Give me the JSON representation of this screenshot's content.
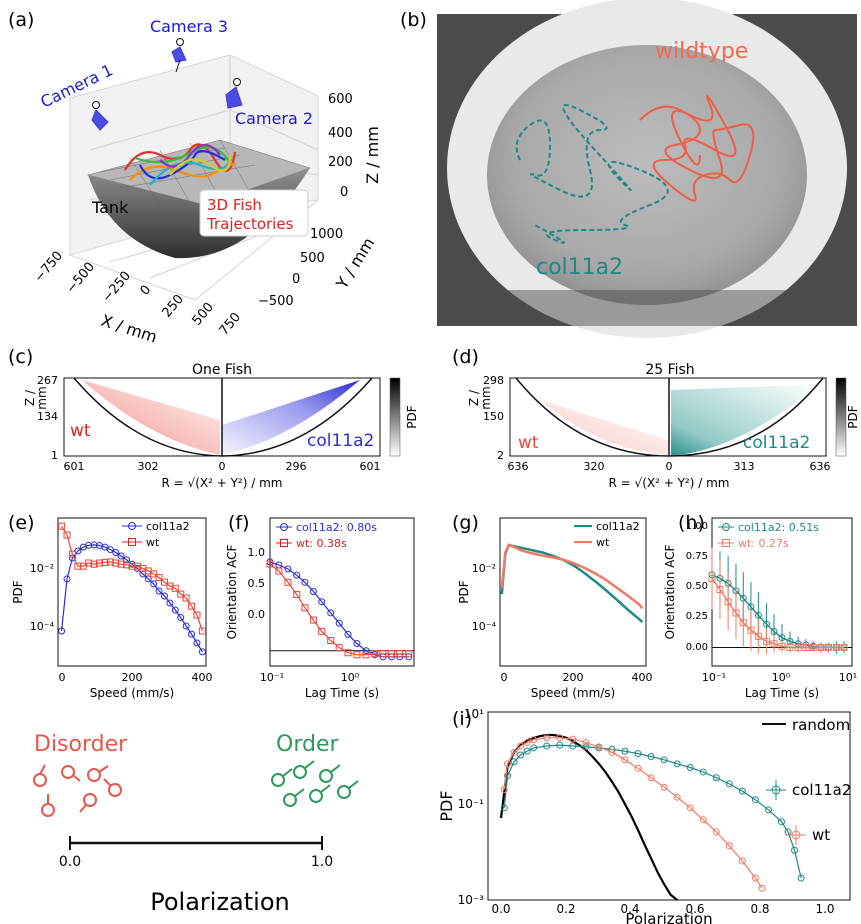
{
  "colors": {
    "wt": "#e8473b",
    "wt_light": "#f07a63",
    "col11a2_blue": "#2b2bd9",
    "col11a2_teal": "#1f8a84",
    "camera": "#1a1acc",
    "order_green": "#2c9a5a",
    "disorder_red": "#e8564c"
  },
  "panel_a": {
    "label": "(a)",
    "cameras": [
      "Camera 1",
      "Camera 2",
      "Camera 3"
    ],
    "tank_label": "Tank",
    "traj_label_1": "3D Fish",
    "traj_label_2": "Trajectories",
    "z_axis": "Z / mm",
    "z_ticks": [
      "600",
      "400",
      "200",
      "0"
    ],
    "y_axis": "Y / mm",
    "y_ticks": [
      "1000",
      "500",
      "0",
      "−500"
    ],
    "x_axis": "X / mm",
    "x_ticks": [
      "−750",
      "−500",
      "−250",
      "0",
      "250",
      "500",
      "750"
    ]
  },
  "panel_b": {
    "label": "(b)",
    "wildtype_label": "wildtype",
    "col11a2_label": "col11a2"
  },
  "panel_c": {
    "label": "(c)",
    "title": "One Fish",
    "ylabel_1": "Z /",
    "ylabel_2": "mm",
    "yticks": [
      "267",
      "134",
      "1"
    ],
    "xticks": [
      "601",
      "302",
      "0",
      "296",
      "601"
    ],
    "left_label": "wt",
    "right_label": "col11a2",
    "xlabel": "R = √(X² + Y²) / mm",
    "colorbar_label": "PDF"
  },
  "panel_d": {
    "label": "(d)",
    "title": "25 Fish",
    "ylabel_1": "Z /",
    "ylabel_2": "mm",
    "yticks": [
      "298",
      "150",
      "2"
    ],
    "xticks": [
      "636",
      "320",
      "0",
      "313",
      "636"
    ],
    "left_label": "wt",
    "right_label": "col11a2",
    "xlabel": "R = √(X² + Y²) / mm",
    "colorbar_label": "PDF"
  },
  "panel_e": {
    "label": "(e)",
    "ylabel": "PDF",
    "xlabel": "Speed (mm/s)",
    "xticks": [
      "0",
      "200",
      "400"
    ],
    "yticks": [
      "10⁻²",
      "10⁻⁴"
    ],
    "legend": [
      "col11a2",
      "wt"
    ]
  },
  "panel_f": {
    "label": "(f)",
    "ylabel": "Orientation ACF",
    "xlabel": "Lag Time (s)",
    "xticks": [
      "10⁻¹",
      "10⁰"
    ],
    "yticks": [
      "1.0",
      "0.5",
      "0.0"
    ],
    "legend": [
      "col11a2: 0.80s",
      "wt: 0.38s"
    ]
  },
  "panel_g": {
    "label": "(g)",
    "ylabel": "PDF",
    "xlabel": "Speed (mm/s)",
    "xticks": [
      "0",
      "200",
      "400"
    ],
    "yticks": [
      "10⁻²",
      "10⁻⁴"
    ],
    "legend": [
      "col11a2",
      "wt"
    ]
  },
  "panel_h": {
    "label": "(h)",
    "ylabel": "Orientation ACF",
    "xlabel": "Lag Time (s)",
    "xticks": [
      "10⁻¹",
      "10⁰",
      "10¹"
    ],
    "yticks": [
      "1.00",
      "0.75",
      "0.50",
      "0.25",
      "0.00"
    ],
    "legend": [
      "col11a2: 0.51s",
      "wt: 0.27s"
    ]
  },
  "panel_i": {
    "label": "(i)",
    "ylabel": "PDF",
    "xlabel": "Polarization",
    "xticks": [
      "0.0",
      "0.2",
      "0.4",
      "0.6",
      "0.8",
      "1.0"
    ],
    "yticks": [
      "10¹",
      "10⁻¹",
      "10⁻³"
    ],
    "legend": [
      "random",
      "col11a2",
      "wt"
    ]
  },
  "schematic": {
    "disorder": "Disorder",
    "order": "Order",
    "axis_label": "Polarization",
    "tick_left": "0.0",
    "tick_right": "1.0"
  },
  "chart_data": [
    {
      "type": "line",
      "panel": "e",
      "xlabel": "Speed (mm/s)",
      "ylabel": "PDF",
      "yscale": "log",
      "xlim": [
        0,
        410
      ],
      "ylim": [
        8e-06,
        0.04
      ],
      "series": [
        {
          "name": "col11a2",
          "x": [
            10,
            25,
            40,
            55,
            70,
            85,
            100,
            115,
            130,
            145,
            160,
            175,
            190,
            205,
            220,
            235,
            250,
            265,
            280,
            295,
            310,
            325,
            340,
            355,
            370,
            385,
            400
          ],
          "y": [
            6e-05,
            0.0012,
            0.004,
            0.006,
            0.0075,
            0.0083,
            0.0085,
            0.0082,
            0.0075,
            0.0065,
            0.0055,
            0.0045,
            0.0036,
            0.0028,
            0.0022,
            0.0016,
            0.0012,
            0.0009,
            0.0006,
            0.00045,
            0.0003,
            0.0002,
            0.00013,
            8e-05,
            5e-05,
            3e-05,
            1.8e-05
          ]
        },
        {
          "name": "wt",
          "x": [
            10,
            25,
            40,
            55,
            70,
            85,
            100,
            115,
            130,
            145,
            160,
            175,
            190,
            205,
            220,
            235,
            250,
            265,
            280,
            295,
            310,
            325,
            340,
            355,
            370,
            385,
            400
          ],
          "y": [
            0.025,
            0.015,
            0.005,
            0.0025,
            0.0025,
            0.003,
            0.0028,
            0.003,
            0.0031,
            0.0032,
            0.003,
            0.0028,
            0.0027,
            0.0025,
            0.0025,
            0.0022,
            0.0019,
            0.0016,
            0.0013,
            0.001,
            0.0008,
            0.0007,
            0.0005,
            0.0004,
            0.00025,
            0.00015,
            6e-05
          ]
        }
      ]
    },
    {
      "type": "line",
      "panel": "f",
      "xlabel": "Lag Time (s)",
      "ylabel": "Orientation ACF",
      "xscale": "log",
      "xlim": [
        0.1,
        7
      ],
      "ylim": [
        -0.15,
        1.3
      ],
      "series": [
        {
          "name": "col11a2: 0.80s",
          "x": [
            0.1,
            0.13,
            0.17,
            0.22,
            0.28,
            0.36,
            0.46,
            0.6,
            0.77,
            1.0,
            1.3,
            1.7,
            2.2,
            2.8,
            3.6,
            4.6,
            6.0
          ],
          "y": [
            0.87,
            0.84,
            0.8,
            0.74,
            0.67,
            0.58,
            0.48,
            0.37,
            0.27,
            0.16,
            0.07,
            0.0,
            -0.04,
            -0.06,
            -0.06,
            -0.06,
            -0.06
          ]
        },
        {
          "name": "wt: 0.38s",
          "x": [
            0.1,
            0.13,
            0.17,
            0.22,
            0.28,
            0.36,
            0.46,
            0.6,
            0.77,
            1.0,
            1.3,
            1.7,
            2.2,
            2.8,
            3.6,
            4.6,
            6.0
          ],
          "y": [
            0.85,
            0.78,
            0.67,
            0.55,
            0.42,
            0.3,
            0.19,
            0.1,
            0.03,
            -0.02,
            -0.04,
            -0.04,
            -0.03,
            -0.03,
            -0.03,
            -0.03,
            -0.03
          ]
        }
      ]
    },
    {
      "type": "line",
      "panel": "g",
      "xlabel": "Speed (mm/s)",
      "ylabel": "PDF",
      "yscale": "log",
      "xlim": [
        0,
        410
      ],
      "ylim": [
        8e-06,
        0.04
      ],
      "series": [
        {
          "name": "col11a2",
          "x": [
            5,
            15,
            25,
            40,
            60,
            80,
            100,
            120,
            150,
            180,
            210,
            240,
            270,
            300,
            330,
            360,
            390,
            400
          ],
          "y": [
            0.0005,
            0.005,
            0.0085,
            0.0078,
            0.0072,
            0.0066,
            0.006,
            0.0055,
            0.0045,
            0.0035,
            0.0025,
            0.0016,
            0.001,
            0.0006,
            0.00035,
            0.0002,
            0.00012,
            0.0001
          ]
        },
        {
          "name": "wt",
          "x": [
            5,
            15,
            25,
            40,
            60,
            80,
            100,
            120,
            150,
            180,
            210,
            240,
            270,
            300,
            330,
            360,
            390,
            400
          ],
          "y": [
            0.0007,
            0.0055,
            0.0085,
            0.0075,
            0.0062,
            0.0055,
            0.005,
            0.0046,
            0.0041,
            0.0036,
            0.0029,
            0.0022,
            0.0016,
            0.0011,
            0.0007,
            0.00045,
            0.00028,
            0.00022
          ]
        }
      ]
    },
    {
      "type": "line",
      "panel": "h",
      "xlabel": "Lag Time (s)",
      "ylabel": "Orientation ACF",
      "xscale": "log",
      "xlim": [
        0.1,
        10
      ],
      "ylim": [
        -0.15,
        1.05
      ],
      "series": [
        {
          "name": "col11a2: 0.51s",
          "x": [
            0.1,
            0.13,
            0.17,
            0.22,
            0.28,
            0.36,
            0.46,
            0.6,
            0.77,
            1.0,
            1.3,
            1.7,
            2.2,
            2.8,
            3.6,
            4.6,
            6.0,
            7.7
          ],
          "y": [
            0.59,
            0.56,
            0.52,
            0.46,
            0.4,
            0.33,
            0.26,
            0.19,
            0.13,
            0.08,
            0.05,
            0.03,
            0.02,
            0.01,
            0.0,
            0.0,
            0.0,
            0.0
          ],
          "err": [
            0.22,
            0.22,
            0.22,
            0.22,
            0.21,
            0.2,
            0.19,
            0.17,
            0.14,
            0.11,
            0.08,
            0.06,
            0.05,
            0.04,
            0.04,
            0.04,
            0.05,
            0.05
          ]
        },
        {
          "name": "wt: 0.27s",
          "x": [
            0.1,
            0.13,
            0.17,
            0.22,
            0.28,
            0.36,
            0.46,
            0.6,
            0.77,
            1.0,
            1.3,
            1.7,
            2.2,
            2.8,
            3.6,
            4.6,
            6.0,
            7.7
          ],
          "y": [
            0.56,
            0.47,
            0.37,
            0.28,
            0.2,
            0.14,
            0.09,
            0.05,
            0.03,
            0.01,
            0.0,
            0.0,
            0.0,
            0.0,
            0.0,
            0.0,
            0.0,
            0.0
          ],
          "err": [
            0.25,
            0.24,
            0.23,
            0.21,
            0.19,
            0.17,
            0.14,
            0.1,
            0.07,
            0.05,
            0.04,
            0.04,
            0.03,
            0.03,
            0.03,
            0.03,
            0.03,
            0.03
          ]
        }
      ]
    },
    {
      "type": "line",
      "panel": "i",
      "xlabel": "Polarization",
      "ylabel": "PDF",
      "yscale": "log",
      "xlim": [
        -0.04,
        1.07
      ],
      "ylim": [
        0.001,
        12
      ],
      "series": [
        {
          "name": "random",
          "x": [
            0.0,
            0.02,
            0.04,
            0.06,
            0.08,
            0.1,
            0.12,
            0.14,
            0.16,
            0.18,
            0.2,
            0.22,
            0.24,
            0.26,
            0.28,
            0.3,
            0.32,
            0.34,
            0.36,
            0.38,
            0.4,
            0.42,
            0.44,
            0.46,
            0.48,
            0.5,
            0.52,
            0.54
          ],
          "y": [
            0.06,
            0.8,
            1.6,
            2.3,
            2.9,
            3.3,
            3.6,
            3.8,
            3.8,
            3.6,
            3.3,
            2.8,
            2.3,
            1.8,
            1.3,
            0.9,
            0.6,
            0.37,
            0.22,
            0.12,
            0.065,
            0.033,
            0.016,
            0.008,
            0.004,
            0.0022,
            0.0013,
            0.001
          ]
        },
        {
          "name": "col11a2",
          "x": [
            0.01,
            0.02,
            0.04,
            0.06,
            0.08,
            0.1,
            0.14,
            0.18,
            0.22,
            0.26,
            0.3,
            0.34,
            0.38,
            0.42,
            0.46,
            0.5,
            0.54,
            0.58,
            0.62,
            0.66,
            0.7,
            0.74,
            0.78,
            0.82,
            0.86,
            0.88,
            0.9,
            0.92
          ],
          "y": [
            0.1,
            0.5,
            1.0,
            1.4,
            1.7,
            2.0,
            2.2,
            2.3,
            2.2,
            2.1,
            2.0,
            1.85,
            1.7,
            1.5,
            1.3,
            1.1,
            0.9,
            0.75,
            0.6,
            0.45,
            0.33,
            0.23,
            0.15,
            0.09,
            0.05,
            0.03,
            0.012,
            0.003
          ]
        },
        {
          "name": "wt",
          "x": [
            0.01,
            0.02,
            0.04,
            0.06,
            0.08,
            0.1,
            0.14,
            0.18,
            0.22,
            0.26,
            0.3,
            0.34,
            0.38,
            0.42,
            0.46,
            0.5,
            0.54,
            0.58,
            0.62,
            0.66,
            0.7,
            0.74,
            0.78,
            0.8
          ],
          "y": [
            0.25,
            0.9,
            1.6,
            2.2,
            2.6,
            3.0,
            3.3,
            3.3,
            3.1,
            2.6,
            2.1,
            1.6,
            1.1,
            0.72,
            0.45,
            0.28,
            0.17,
            0.1,
            0.055,
            0.03,
            0.015,
            0.007,
            0.003,
            0.0018
          ]
        }
      ]
    }
  ]
}
